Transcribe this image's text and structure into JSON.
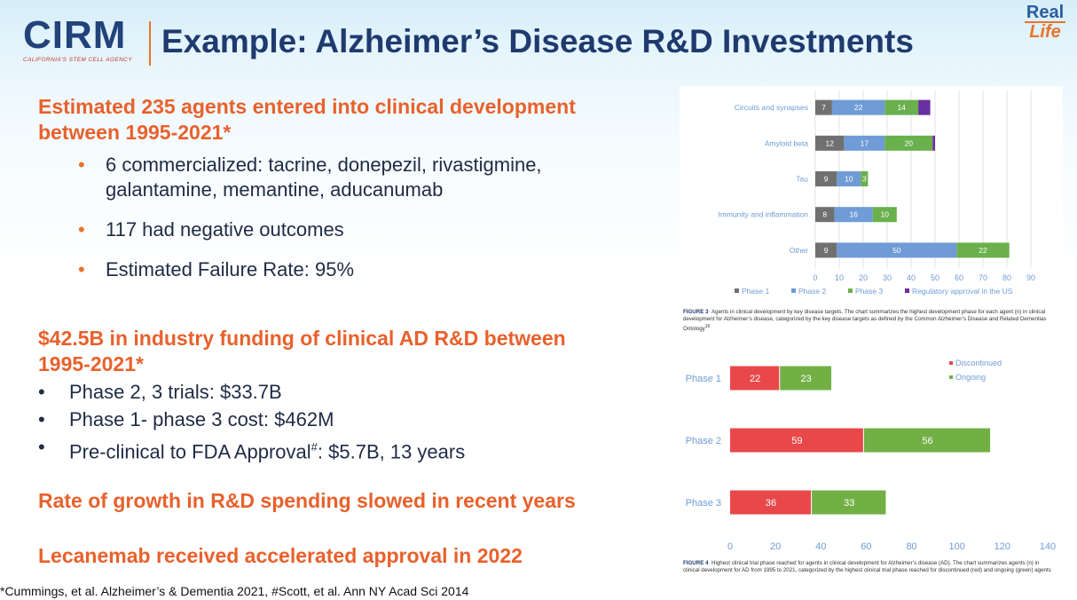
{
  "header": {
    "logo_text": "CIRM",
    "logo_tagline": "CALIFORNIA'S STEM CELL AGENCY",
    "title": "Example: Alzheimer’s Disease R&D Investments",
    "badge_line1": "Real",
    "badge_line2": "Life"
  },
  "section1": {
    "heading_line1": "Estimated 235 agents entered into clinical development",
    "heading_line2": "between 1995-2021*",
    "bullets": [
      {
        "line1": "6 commercialized: tacrine, donepezil, rivastigmine,",
        "line2": "galantamine, memantine, aducanumab"
      },
      {
        "line1": "117 had negative outcomes"
      },
      {
        "line1": "Estimated Failure Rate: 95%"
      }
    ]
  },
  "section2": {
    "heading_line1": "$42.5B in industry funding of clinical AD R&D between",
    "heading_line2": "1995-2021*",
    "bullets": [
      {
        "text": "Phase 2, 3 trials: $33.7B"
      },
      {
        "text": "Phase 1- phase 3 cost: $462M"
      },
      {
        "pre": "Pre-clinical to FDA Approval",
        "sup": "#",
        "post": ": $5.7B, 13 years"
      }
    ]
  },
  "statement1": "Rate of growth in R&D spending slowed in recent years",
  "statement2": "Lecanemab received accelerated approval in 2022",
  "footnote": "*Cummings, et al. Alzheimer’s & Dementia 2021, #Scott, et al. Ann NY Acad Sci 2014",
  "colors": {
    "orange": "#e8612c",
    "navy": "#1f3a6e",
    "phase1": "#707070",
    "phase2": "#6f9bd6",
    "phase3": "#6ab04c",
    "approval": "#6a2fa0",
    "discontinued": "#e8484a",
    "ongoing": "#72b046"
  },
  "chart_data": [
    {
      "type": "bar",
      "orientation": "horizontal",
      "stacked": true,
      "categories": [
        "Circuits and synapses",
        "Amyloid beta",
        "Tau",
        "Immunity and inflammation",
        "Other"
      ],
      "series": [
        {
          "name": "Phase 1",
          "values": [
            7,
            12,
            9,
            8,
            9
          ]
        },
        {
          "name": "Phase 2",
          "values": [
            22,
            17,
            10,
            16,
            50
          ]
        },
        {
          "name": "Phase 3",
          "values": [
            14,
            20,
            3,
            10,
            22
          ]
        },
        {
          "name": "Regulatory approval in the US",
          "values": [
            5,
            1,
            0,
            0,
            0
          ]
        }
      ],
      "data_labels": [
        [
          "7",
          "22",
          "14",
          ""
        ],
        [
          "12",
          "17",
          "20",
          ""
        ],
        [
          "9",
          "10",
          "3",
          ""
        ],
        [
          "8",
          "16",
          "10",
          ""
        ],
        [
          "9",
          "50",
          "22",
          ""
        ]
      ],
      "xlim": [
        0,
        90
      ],
      "xticks": [
        0,
        10,
        20,
        30,
        40,
        50,
        60,
        70,
        80,
        90
      ],
      "legend_position": "bottom",
      "grid": true,
      "caption_label": "FIGURE 3",
      "caption": "Agents in clinical development by key disease targets. The chart summarizes the highest development phase for each agent (n) in clinical development for Alzheimer’s disease, categorized by the key disease targets as defined by the Common Alzheimer’s Disease and Related Dementias Ontology",
      "caption_ref": "16"
    },
    {
      "type": "bar",
      "orientation": "horizontal",
      "stacked": true,
      "categories": [
        "Phase 1",
        "Phase 2",
        "Phase 3"
      ],
      "series": [
        {
          "name": "Discontinued",
          "values": [
            22,
            59,
            36
          ]
        },
        {
          "name": "Ongoing",
          "values": [
            23,
            56,
            33
          ]
        }
      ],
      "xlim": [
        0,
        140
      ],
      "xticks": [
        0,
        20,
        40,
        60,
        80,
        100,
        120,
        140
      ],
      "legend_position": "top-right",
      "grid": false,
      "caption_label": "FIGURE 4",
      "caption": "Highest clinical trial phase reached for agents in clinical development for Alzheimer’s disease (AD). The chart summarizes agents (n) in clinical development for AD from 1995 to 2021, categorized by the highest clinical trial phase reached for discontinued (red) and ongoing (green) agents"
    }
  ]
}
